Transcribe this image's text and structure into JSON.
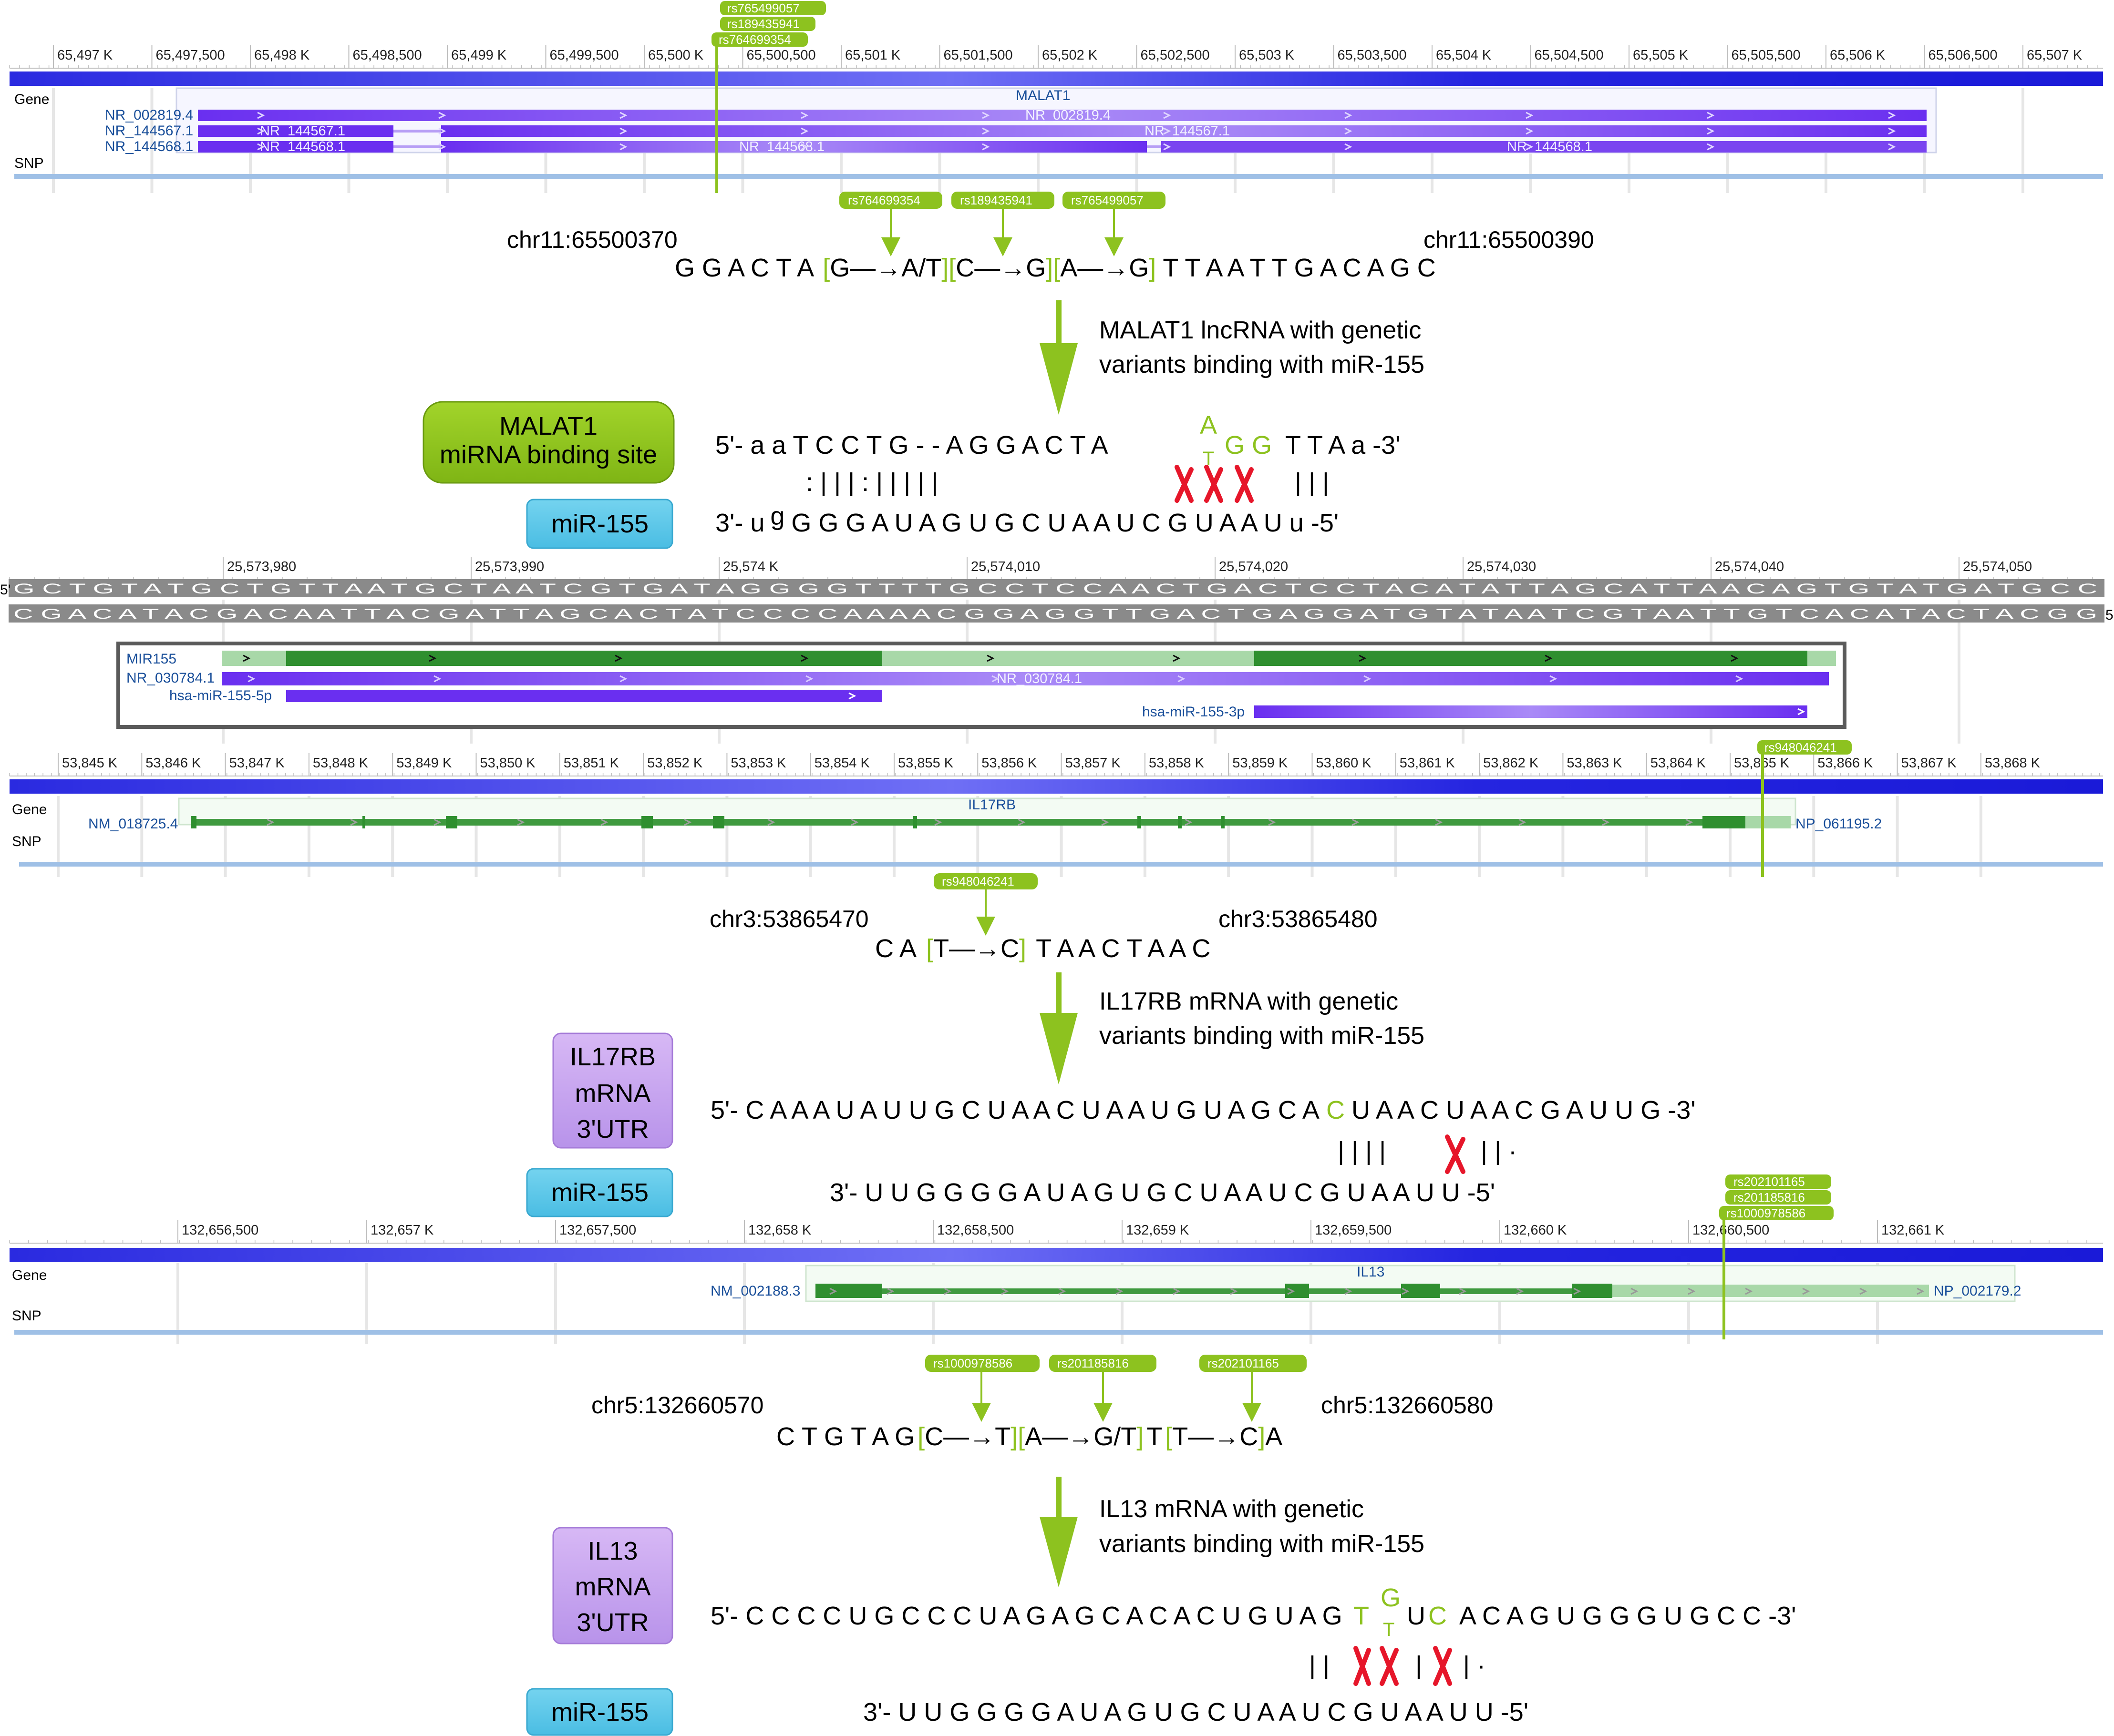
{
  "panel1": {
    "ruler_ticks": [
      "65,497 K",
      "65,497,500",
      "65,498 K",
      "65,498,500",
      "65,499 K",
      "65,499,500",
      "65,500 K",
      "65,500,500",
      "65,501 K",
      "65,501,500",
      "65,502 K",
      "65,502,500",
      "65,503 K",
      "65,503,500",
      "65,504 K",
      "65,504,500",
      "65,505 K",
      "65,505,500",
      "65,506 K",
      "65,506,500",
      "65,507 K"
    ],
    "track_gene": "Gene",
    "track_snp": "SNP",
    "gene_name": "MALAT1",
    "transcripts": [
      "NR_002819.4",
      "NR_144567.1",
      "NR_144568.1"
    ],
    "inner_labels": {
      "t1": "NR_002819.4",
      "t2a": "NR_144567.1",
      "t2b": "NR_144567.1",
      "t3a": "NR_144568.1",
      "t3b": "NR_144568.1",
      "t3c": "NR_144568.1"
    },
    "snp_tags_top": [
      "rs765499057",
      "rs189435941",
      "rs764699354"
    ],
    "snp_tags_seq": [
      "rs764699354",
      "rs189435941",
      "rs765499057"
    ],
    "coord_left": "chr11:65500370",
    "coord_right": "chr11:65500390",
    "seq_prefix": "G G A C T A",
    "var1": "G—→A/T",
    "var2": "C—→G",
    "var3": "A—→G",
    "seq_suffix": "T T A A T T G A C A G C",
    "arrow_caption": [
      "MALAT1 lncRNA with genetic",
      "variants binding with miR-155"
    ],
    "box_label": [
      "MALAT1",
      "miRNA binding site"
    ],
    "mirna_label": "miR-155",
    "top_strand": "5'- a a T C C T G - - A G G A C T A",
    "top_var_a": "A",
    "top_var_t": "T",
    "top_var_gg": "G G",
    "top_strand_end": "T T A a -3'",
    "pairs": ": | | | :       |     | |     | |",
    "pairs_end": "| | |",
    "bottom_strand_prefix": "3'- u",
    "bottom_strand_g": "g",
    "bottom_strand": "G G G A U A G U G C U A A U C G U A A U u -5'"
  },
  "panel2": {
    "ruler_ticks": [
      "25,573,980",
      "25,573,990",
      "25,574 K",
      "25,574,010",
      "25,574,020",
      "25,574,030",
      "25,574,040",
      "25,574,050"
    ],
    "strand_label": "5'",
    "strand_label_end": "5'",
    "dna_top": "G C T G T A T G C T G T T A A T G C T A A T C G T G A T A G G G G T T T T G C C T C C A A C T G A C T C C T A C A T A T T A G C A T T A A C A G T G T A T G A T G C C",
    "dna_bottom": "C G A C A T A C G A C A A T T A C G A T T A G C A C T A T C C C C A A A A C G G A G G T T G A C T G A G G A T G T A T A A T C G T A A T T G T C A C A T A C T A C G G",
    "gene": "MIR155",
    "transcript": "NR_030784.1",
    "transcript_inner": "NR_030784.1",
    "mature_5p": "hsa-miR-155-5p",
    "mature_3p": "hsa-miR-155-3p"
  },
  "panel3": {
    "ruler_ticks": [
      "53,845 K",
      "53,846 K",
      "53,847 K",
      "53,848 K",
      "53,849 K",
      "53,850 K",
      "53,851 K",
      "53,852 K",
      "53,853 K",
      "53,854 K",
      "53,855 K",
      "53,856 K",
      "53,857 K",
      "53,858 K",
      "53,859 K",
      "53,860 K",
      "53,861 K",
      "53,862 K",
      "53,863 K",
      "53,864 K",
      "53,865 K",
      "53,866 K",
      "53,867 K",
      "53,868 K"
    ],
    "track_gene": "Gene",
    "track_snp": "SNP",
    "gene_name": "IL17RB",
    "transcript_left": "NM_018725.4",
    "transcript_right": "NP_061195.2",
    "snp_tag_top": "rs948046241",
    "snp_tag_seq": "rs948046241",
    "coord_left": "chr3:53865470",
    "coord_right": "chr3:53865480",
    "seq_prefix": "C A",
    "var1": "T—→C",
    "seq_suffix": "T A A C T A A C",
    "arrow_caption": [
      "IL17RB mRNA with genetic",
      "variants binding with miR-155"
    ],
    "box_label": [
      "IL17RB",
      "mRNA",
      "3'UTR"
    ],
    "mirna_label": "miR-155",
    "top_strand_a": "5'- C A A A U A U U G C U A A C U A A U G U A G C A",
    "top_var": "C",
    "top_strand_b": "U A A C U A A C G A U U G -3'",
    "pairs": "| | | |",
    "pairs_end": "| |  ·",
    "bottom_strand": "3'- U U G G G G A U A G U G C U A A U C G U A A U U -5'"
  },
  "panel4": {
    "ruler_ticks": [
      "132,656,500",
      "132,657 K",
      "132,657,500",
      "132,658 K",
      "132,658,500",
      "132,659 K",
      "132,659,500",
      "132,660 K",
      "132,660,500",
      "132,661 K"
    ],
    "track_gene": "Gene",
    "track_snp": "SNP",
    "gene_name": "IL13",
    "transcript_left": "NM_002188.3",
    "transcript_right": "NP_002179.2",
    "snp_tags_top": [
      "rs202101165",
      "rs201185816",
      "rs1000978586"
    ],
    "snp_tags_seq": [
      "rs1000978586",
      "rs201185816",
      "rs202101165"
    ],
    "coord_left": "chr5:132660570",
    "coord_right": "chr5:132660580",
    "seq_prefix": "C T G T A G",
    "var1": "C—→T",
    "var2": "A—→G/T",
    "mid": "T",
    "var3": "T—→C",
    "seq_suffix": "A",
    "arrow_caption": [
      "IL13 mRNA with genetic",
      "variants binding with miR-155"
    ],
    "box_label": [
      "IL13",
      "mRNA",
      "3'UTR"
    ],
    "mirna_label": "miR-155",
    "top_strand_a": "5'- C C C C U G C C C U A G A G C A C A C U G U A G",
    "top_var_t": "T",
    "top_var_g": "G",
    "top_var_t2": "T",
    "top_mid": "U",
    "top_var_c": "C",
    "top_strand_b": "A C A G U G G G U G C C -3'",
    "pairs": "| |",
    "pairs_mid": "|",
    "pairs_end": "|   ·",
    "bottom_strand": "3'- U U G G G G A U A G U G C U A A U C G U A A U U -5'"
  },
  "colors": {
    "chromosome_blue": "#2f2fe6",
    "transcript_purple": "#7a3ff0",
    "gene_green": "#3f9a3f",
    "snp_green": "#8dc21f",
    "mutation_red": "#e6162a",
    "box_green": "#8dc21f",
    "box_purple": "#c9a6ee",
    "box_cyan": "#5fc8e8"
  }
}
